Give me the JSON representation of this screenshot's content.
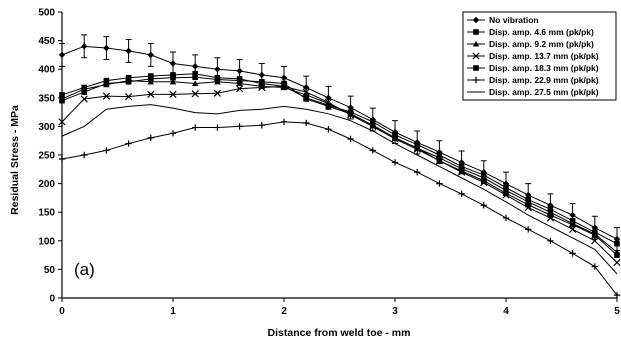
{
  "chart_data": {
    "type": "line",
    "title": "",
    "xlabel": "Distance from weld toe - mm",
    "ylabel": "Residual Stress - MPa",
    "panel_label": "(a)",
    "xlim": [
      0,
      5
    ],
    "ylim": [
      0,
      500
    ],
    "xticks": [
      0,
      1,
      2,
      3,
      4,
      5
    ],
    "yticks": [
      0,
      50,
      100,
      150,
      200,
      250,
      300,
      350,
      400,
      450,
      500
    ],
    "grid": false,
    "legend_position": "top-right",
    "x": [
      0,
      0.2,
      0.4,
      0.6,
      0.8,
      1.0,
      1.2,
      1.4,
      1.6,
      1.8,
      2.0,
      2.2,
      2.4,
      2.6,
      2.8,
      3.0,
      3.2,
      3.4,
      3.6,
      3.8,
      4.0,
      4.2,
      4.4,
      4.6,
      4.8,
      5.0
    ],
    "series": [
      {
        "name": "No vibration",
        "marker": "diamond",
        "error_bars": true,
        "values": [
          425,
          440,
          437,
          432,
          425,
          410,
          405,
          400,
          397,
          390,
          385,
          368,
          350,
          333,
          312,
          290,
          272,
          255,
          237,
          220,
          200,
          180,
          162,
          145,
          123,
          103
        ]
      },
      {
        "name": "Disp. amp. 4.6 mm (pk/pk)",
        "marker": "square",
        "error_bars": false,
        "values": [
          355,
          368,
          380,
          385,
          388,
          390,
          392,
          385,
          383,
          375,
          370,
          350,
          337,
          325,
          308,
          285,
          268,
          250,
          230,
          215,
          193,
          172,
          155,
          135,
          115,
          95
        ]
      },
      {
        "name": "Disp. amp. 9.2 mm (pk/pk)",
        "marker": "triangle",
        "error_bars": false,
        "values": [
          348,
          365,
          373,
          380,
          378,
          378,
          375,
          378,
          375,
          370,
          368,
          355,
          340,
          322,
          302,
          280,
          262,
          245,
          226,
          210,
          188,
          168,
          150,
          130,
          112,
          80
        ]
      },
      {
        "name": "Disp. amp. 13.7 mm (pk/pk)",
        "marker": "x",
        "error_bars": false,
        "values": [
          308,
          348,
          353,
          352,
          356,
          356,
          357,
          358,
          366,
          368,
          370,
          360,
          342,
          320,
          300,
          278,
          260,
          240,
          220,
          202,
          180,
          158,
          140,
          120,
          100,
          62
        ]
      },
      {
        "name": "Disp. amp. 18.3 mm (pk/pk)",
        "marker": "square",
        "error_bars": false,
        "values": [
          345,
          360,
          375,
          378,
          383,
          385,
          386,
          382,
          380,
          378,
          375,
          348,
          335,
          322,
          302,
          280,
          262,
          240,
          222,
          205,
          183,
          163,
          145,
          128,
          110,
          75
        ]
      },
      {
        "name": "Disp. amp. 22.9 mm (pk/pk)",
        "marker": "plus",
        "error_bars": false,
        "values": [
          243,
          250,
          258,
          270,
          280,
          288,
          298,
          298,
          300,
          302,
          308,
          306,
          295,
          278,
          258,
          237,
          220,
          200,
          182,
          162,
          140,
          120,
          100,
          78,
          55,
          5
        ]
      },
      {
        "name": "Disp. amp. 27.5 mm (pk/pk)",
        "marker": "none",
        "error_bars": false,
        "values": [
          283,
          300,
          330,
          335,
          338,
          332,
          324,
          322,
          328,
          330,
          335,
          330,
          322,
          310,
          292,
          270,
          250,
          230,
          210,
          190,
          168,
          145,
          125,
          105,
          85,
          42
        ]
      }
    ],
    "error_bar_half_width": [
      20,
      20,
      20,
      20,
      20,
      20,
      20,
      20,
      20,
      20,
      20,
      20,
      20,
      20,
      20,
      20,
      20,
      20,
      20,
      20,
      20,
      20,
      20,
      20,
      20,
      20
    ]
  }
}
